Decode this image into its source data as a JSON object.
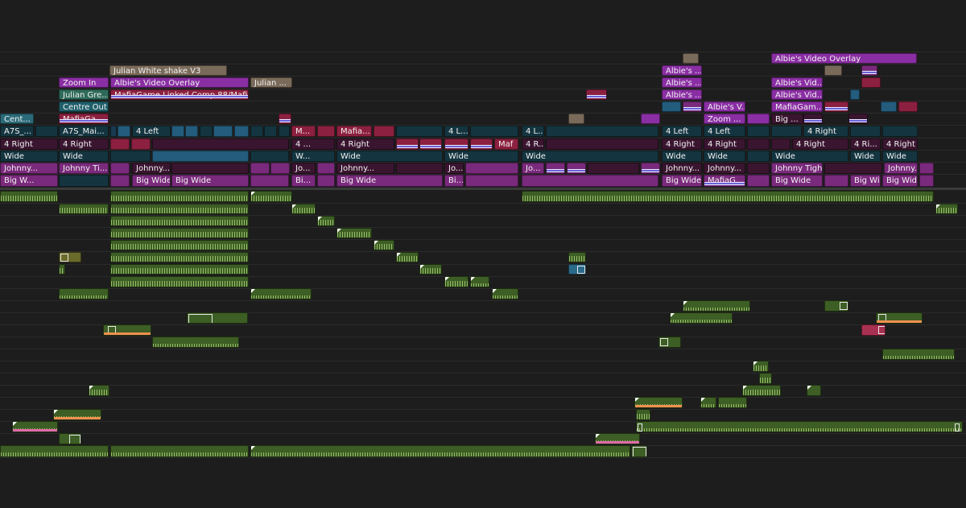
{
  "app": "Video editor timeline",
  "colors": {
    "background": "#1d1d1d",
    "purple_clip": "#8a2ea3",
    "magenta_clip": "#7a2a7c",
    "crimson_clip": "#8c2040",
    "teal_clip": "#1f5f6a",
    "audio_clip": "#3d5e24",
    "waveform": "#a8cf76"
  },
  "clips": {
    "v8_albie_overlay": "Albie's Video Overlay",
    "v7_julian_shake": "Julian White shake V3",
    "v6_zoom_in": "Zoom In",
    "v6_albie_overlay": "Albie's Video Overlay",
    "v6_julian_short": "Julian ...",
    "v6_albie_short_1": "Albie's ...",
    "v6_albie_short_2": "Albie's ...",
    "v6_albie_vid": "Albie's Vid...",
    "v5_julian_green": "Julian Gre...",
    "v5_mafia_comp": "MafiaGame Linked Comp 88/MafiaG...",
    "v5_albie_short": "Albie's ...",
    "v5_albie_vid": "Albie's Vid...",
    "v4_centre_out": "Centre Out",
    "v4_albie_v": "Albie's V...",
    "v4_mafiagam": "MafiaGam...",
    "v3_cent": "Cent...",
    "v3_mafiaga": "MafiaGa...",
    "v3_zoom": "Zoom ...",
    "v3_big": "Big ...",
    "v2_a7s": "A7S_...",
    "v2_a7s_mai": "A7S_Mai...",
    "v2_4left": "4 Left",
    "v2_m": "M...",
    "v2_mafia": "Mafia...",
    "v2_4l": "4 L...",
    "v2_4l_2": "4 L...",
    "v2_4left_2": "4 Left",
    "v2_4left_3": "4 Left",
    "v2_4right": "4 Right",
    "v1_4right": "4 Right",
    "v1_4right_2": "4 Right",
    "v1_4dots": "4 ...",
    "v1_4right_3": "4 Right",
    "v1_maf": "Maf",
    "v1_4r": "4 R...",
    "v1_4right_4": "4 Right",
    "v1_4right_5": "4 Right",
    "v1_4right_6": "4 Right",
    "v1_4ri": "4 Ri...",
    "v1_4right_7": "4 Right",
    "w_wide": "Wide",
    "w_wide_2": "Wide",
    "w_w": "W...",
    "w_wide_3": "Wide",
    "w_wide_4": "Wide",
    "w_wide_5": "Wide",
    "w_wide_6": "Wide",
    "w_wide_7": "Wide",
    "w_wide_8": "Wide",
    "w_wide_9": "Wide",
    "w_wide_10": "Wide",
    "j_johnny": "Johnny...",
    "j_johnny_ti": "Johnny Ti...",
    "j_johnny_2": "Johnny...",
    "j_jo": "Jo...",
    "j_johnny_3": "Johnny...",
    "j_jo_2": "Jo...",
    "j_jo_3": "Jo...",
    "j_johnny_4": "Johnny...",
    "j_johnny_5": "Johnny...",
    "j_johnny_tight": "Johnny Tight",
    "j_johnny_6": "Johnny...",
    "b_bigw": "Big W...",
    "b_bigwide": "Big Wide",
    "b_bigwide_2": "Big Wide",
    "b_bi": "Bi...",
    "b_bigwide_3": "Big Wide",
    "b_bi_2": "Bi...",
    "b_bigwide_4": "Big Wide",
    "b_mafiag": "MafiaG...",
    "b_bigwide_5": "Big Wide",
    "b_bigwide_6": "Big Wide",
    "b_bigwide_7": "Big Wide"
  }
}
